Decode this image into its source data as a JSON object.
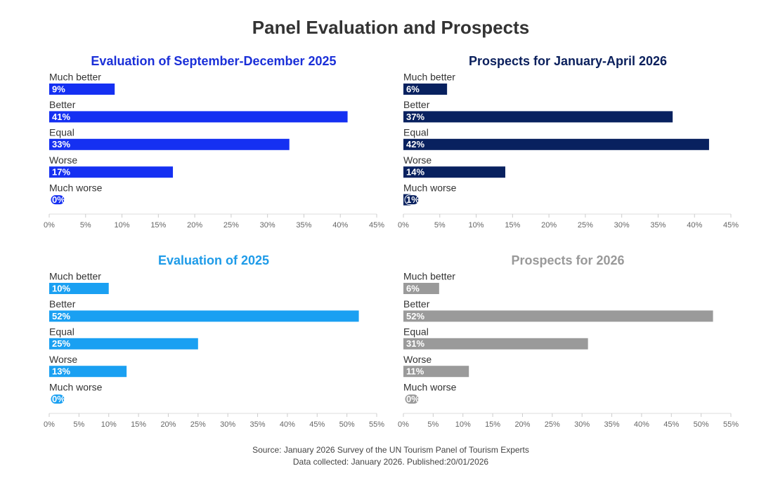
{
  "title": "Panel Evaluation and Prospects",
  "source": "Source: January 2026 Survey of the UN Tourism Panel of Tourism Experts",
  "note": "Data collected: January 2026. Published:20/01/2026",
  "chart_data": [
    {
      "type": "bar",
      "orientation": "horizontal",
      "title": "Evaluation of September-December 2025",
      "categories": [
        "Much better",
        "Better",
        "Equal",
        "Worse",
        "Much worse"
      ],
      "values": [
        9,
        41,
        33,
        17,
        0
      ],
      "value_labels": [
        "9%",
        "41%",
        "33%",
        "17%",
        "0%"
      ],
      "color": "#1530f2",
      "title_color": "#1a2fd8",
      "xlim": [
        0,
        45
      ],
      "xticks": [
        {
          "value": 0,
          "label": "0%"
        },
        {
          "value": 5,
          "label": "5%"
        },
        {
          "value": 10,
          "label": "10%"
        },
        {
          "value": 15,
          "label": "15%"
        },
        {
          "value": 20,
          "label": "20%"
        },
        {
          "value": 25,
          "label": "25%"
        },
        {
          "value": 30,
          "label": "30%"
        },
        {
          "value": 35,
          "label": "35%"
        },
        {
          "value": 40,
          "label": "40%"
        },
        {
          "value": 45,
          "label": "45%"
        }
      ]
    },
    {
      "type": "bar",
      "orientation": "horizontal",
      "title": "Prospects for January-April 2026",
      "categories": [
        "Much better",
        "Better",
        "Equal",
        "Worse",
        "Much worse"
      ],
      "values": [
        6,
        37,
        42,
        14,
        1
      ],
      "value_labels": [
        "6%",
        "37%",
        "42%",
        "14%",
        "1%"
      ],
      "color": "#08215f",
      "title_color": "#0a1f5c",
      "xlim": [
        0,
        45
      ],
      "xticks": [
        {
          "value": 0,
          "label": "0%"
        },
        {
          "value": 5,
          "label": "5%"
        },
        {
          "value": 10,
          "label": "10%"
        },
        {
          "value": 15,
          "label": "15%"
        },
        {
          "value": 20,
          "label": "20%"
        },
        {
          "value": 25,
          "label": "25%"
        },
        {
          "value": 30,
          "label": "30%"
        },
        {
          "value": 35,
          "label": "35%"
        },
        {
          "value": 40,
          "label": "40%"
        },
        {
          "value": 45,
          "label": "45%"
        }
      ]
    },
    {
      "type": "bar",
      "orientation": "horizontal",
      "title": "Evaluation of 2025",
      "categories": [
        "Much better",
        "Better",
        "Equal",
        "Worse",
        "Much worse"
      ],
      "values": [
        10,
        52,
        25,
        13,
        0
      ],
      "value_labels": [
        "10%",
        "52%",
        "25%",
        "13%",
        "0%"
      ],
      "color": "#1aa0f2",
      "title_color": "#1e9be8",
      "xlim": [
        0,
        55
      ],
      "xticks": [
        {
          "value": 0,
          "label": "0%"
        },
        {
          "value": 5,
          "label": "5%"
        },
        {
          "value": 10,
          "label": "10%"
        },
        {
          "value": 15,
          "label": "15%"
        },
        {
          "value": 20,
          "label": "20%"
        },
        {
          "value": 25,
          "label": "25%"
        },
        {
          "value": 30,
          "label": "30%"
        },
        {
          "value": 35,
          "label": "35%"
        },
        {
          "value": 40,
          "label": "40%"
        },
        {
          "value": 45,
          "label": "45%"
        },
        {
          "value": 50,
          "label": "50%"
        },
        {
          "value": 55,
          "label": "55%"
        }
      ]
    },
    {
      "type": "bar",
      "orientation": "horizontal",
      "title": "Prospects for 2026",
      "categories": [
        "Much better",
        "Better",
        "Equal",
        "Worse",
        "Much worse"
      ],
      "values": [
        6,
        52,
        31,
        11,
        0
      ],
      "value_labels": [
        "6%",
        "52%",
        "31%",
        "11%",
        "0%"
      ],
      "color": "#9a9a9a",
      "title_color": "#999999",
      "xlim": [
        0,
        55
      ],
      "xticks": [
        {
          "value": 0,
          "label": "0%"
        },
        {
          "value": 5,
          "label": "5%"
        },
        {
          "value": 10,
          "label": "10%"
        },
        {
          "value": 15,
          "label": "15%"
        },
        {
          "value": 20,
          "label": "20%"
        },
        {
          "value": 25,
          "label": "25%"
        },
        {
          "value": 30,
          "label": "30%"
        },
        {
          "value": 35,
          "label": "35%"
        },
        {
          "value": 40,
          "label": "40%"
        },
        {
          "value": 45,
          "label": "45%"
        },
        {
          "value": 50,
          "label": "50%"
        },
        {
          "value": 55,
          "label": "55%"
        }
      ]
    }
  ]
}
